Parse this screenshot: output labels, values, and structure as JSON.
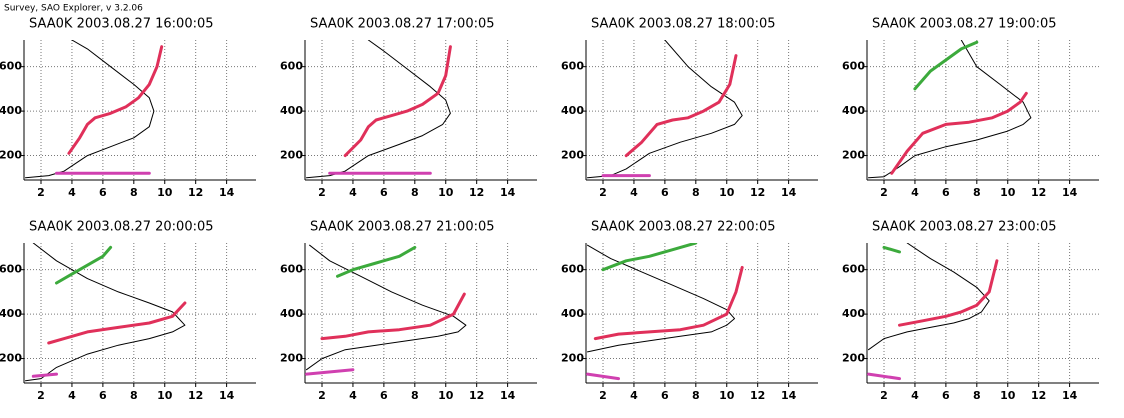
{
  "caption": "Survey, SAO Explorer, v 3.2.06",
  "chart_data": [
    {
      "type": "line",
      "title": "SAA0K 2003.08.27 16:00:05",
      "xlim": [
        0.9,
        15.9
      ],
      "ylim": [
        90,
        720
      ],
      "xticks": [
        2,
        4,
        6,
        8,
        10,
        12,
        14
      ],
      "yticks": [
        200,
        400,
        600
      ],
      "grid": true,
      "series": [
        {
          "color": "#000000",
          "x": [
            1,
            2.5,
            3.5,
            5,
            6.5,
            8,
            9,
            9.3,
            9,
            8,
            6.5,
            5,
            4
          ],
          "values": [
            100,
            110,
            130,
            200,
            240,
            280,
            330,
            400,
            460,
            520,
            600,
            680,
            720
          ]
        },
        {
          "color": "#e0305a",
          "x": [
            3.8,
            4.5,
            5,
            5.5,
            6.5,
            7.5,
            8.3,
            9,
            9.5,
            9.8
          ],
          "values": [
            210,
            280,
            340,
            370,
            390,
            420,
            460,
            520,
            600,
            690
          ]
        },
        {
          "color": "#d040b0",
          "x": [
            3,
            9
          ],
          "values": [
            120,
            120
          ]
        }
      ]
    },
    {
      "type": "line",
      "title": "SAA0K 2003.08.27 17:00:05",
      "xlim": [
        0.9,
        15.9
      ],
      "ylim": [
        90,
        720
      ],
      "xticks": [
        2,
        4,
        6,
        8,
        10,
        12,
        14
      ],
      "yticks": [
        200,
        400,
        600
      ],
      "grid": true,
      "series": [
        {
          "color": "#000000",
          "x": [
            1,
            2.5,
            3.5,
            5,
            7,
            8.5,
            9.8,
            10.3,
            10,
            9,
            7.5,
            6,
            5
          ],
          "values": [
            100,
            110,
            130,
            200,
            250,
            290,
            340,
            390,
            450,
            510,
            590,
            670,
            720
          ]
        },
        {
          "color": "#e0305a",
          "x": [
            3.5,
            4.5,
            5,
            5.5,
            6.5,
            7.5,
            8.5,
            9.5,
            10,
            10.3
          ],
          "values": [
            200,
            270,
            330,
            360,
            380,
            400,
            430,
            480,
            560,
            690
          ]
        },
        {
          "color": "#d040b0",
          "x": [
            2.5,
            9
          ],
          "values": [
            120,
            120
          ]
        }
      ]
    },
    {
      "type": "line",
      "title": "SAA0K 2003.08.27 18:00:05",
      "xlim": [
        0.9,
        15.9
      ],
      "ylim": [
        90,
        720
      ],
      "xticks": [
        2,
        4,
        6,
        8,
        10,
        12,
        14
      ],
      "yticks": [
        200,
        400,
        600
      ],
      "grid": true,
      "series": [
        {
          "color": "#000000",
          "x": [
            1,
            2.5,
            3.5,
            5,
            7,
            9,
            10.5,
            11,
            10.5,
            9,
            7.5,
            6
          ],
          "values": [
            100,
            110,
            140,
            210,
            260,
            300,
            340,
            380,
            440,
            510,
            600,
            720
          ]
        },
        {
          "color": "#e0305a",
          "x": [
            3.5,
            4.5,
            5.5,
            6.5,
            7.5,
            8.5,
            9.5,
            10.2,
            10.6
          ],
          "values": [
            200,
            260,
            340,
            360,
            370,
            400,
            440,
            520,
            650
          ]
        },
        {
          "color": "#d040b0",
          "x": [
            2,
            5
          ],
          "values": [
            110,
            110
          ]
        }
      ]
    },
    {
      "type": "line",
      "title": "SAA0K 2003.08.27 19:00:05",
      "xlim": [
        0.9,
        15.9
      ],
      "ylim": [
        90,
        720
      ],
      "xticks": [
        2,
        4,
        6,
        8,
        10,
        12,
        14
      ],
      "yticks": [
        200,
        400,
        600
      ],
      "grid": true,
      "series": [
        {
          "color": "#000000",
          "x": [
            1,
            2,
            3,
            4,
            6,
            8,
            10,
            11,
            11.5,
            11,
            9.5,
            8,
            7
          ],
          "values": [
            100,
            105,
            150,
            200,
            240,
            270,
            310,
            340,
            370,
            440,
            520,
            600,
            720
          ]
        },
        {
          "color": "#e0305a",
          "x": [
            2.5,
            3.5,
            4.5,
            6,
            7.5,
            9,
            10,
            10.8,
            11.2
          ],
          "values": [
            120,
            220,
            300,
            340,
            350,
            370,
            400,
            440,
            480
          ]
        },
        {
          "color": "#3caa3c",
          "x": [
            4,
            5,
            6,
            7,
            8
          ],
          "values": [
            500,
            580,
            630,
            680,
            710
          ]
        }
      ]
    },
    {
      "type": "line",
      "title": "SAA0K 2003.08.27 20:00:05",
      "xlim": [
        0.9,
        15.9
      ],
      "ylim": [
        90,
        720
      ],
      "xticks": [
        2,
        4,
        6,
        8,
        10,
        12,
        14
      ],
      "yticks": [
        200,
        400,
        600
      ],
      "grid": true,
      "series": [
        {
          "color": "#000000",
          "x": [
            1,
            2,
            3,
            5,
            7,
            9,
            10.5,
            11.3,
            10.5,
            9,
            7,
            5,
            3,
            1.5
          ],
          "values": [
            100,
            110,
            160,
            220,
            260,
            290,
            320,
            350,
            410,
            450,
            500,
            560,
            640,
            720
          ]
        },
        {
          "color": "#e0305a",
          "x": [
            2.5,
            3.5,
            5,
            7,
            9,
            10.5,
            11.3
          ],
          "values": [
            270,
            290,
            320,
            340,
            360,
            390,
            450
          ]
        },
        {
          "color": "#3caa3c",
          "x": [
            3,
            4,
            5,
            6,
            6.5
          ],
          "values": [
            540,
            580,
            620,
            660,
            700
          ]
        },
        {
          "color": "#d040b0",
          "x": [
            1.5,
            3
          ],
          "values": [
            120,
            130
          ]
        }
      ]
    },
    {
      "type": "line",
      "title": "SAA0K 2003.08.27 21:00:05",
      "xlim": [
        0.9,
        15.9
      ],
      "ylim": [
        90,
        720
      ],
      "xticks": [
        2,
        4,
        6,
        8,
        10,
        12,
        14
      ],
      "yticks": [
        200,
        400,
        600
      ],
      "grid": true,
      "series": [
        {
          "color": "#000000",
          "x": [
            1,
            2,
            3.5,
            5.5,
            7.5,
            9.5,
            10.8,
            11.3,
            10.5,
            8.5,
            6.5,
            4.5,
            2.5,
            1.2
          ],
          "values": [
            150,
            200,
            240,
            260,
            280,
            300,
            320,
            350,
            390,
            440,
            500,
            570,
            640,
            710
          ]
        },
        {
          "color": "#e0305a",
          "x": [
            2,
            3.5,
            5,
            7,
            9,
            10.5,
            11.2
          ],
          "values": [
            290,
            300,
            320,
            330,
            350,
            400,
            490
          ]
        },
        {
          "color": "#3caa3c",
          "x": [
            3,
            4,
            5.5,
            7,
            8
          ],
          "values": [
            570,
            600,
            630,
            660,
            700
          ]
        },
        {
          "color": "#d040b0",
          "x": [
            1,
            4
          ],
          "values": [
            130,
            150
          ]
        }
      ]
    },
    {
      "type": "line",
      "title": "SAA0K 2003.08.27 22:00:05",
      "xlim": [
        0.9,
        15.9
      ],
      "ylim": [
        90,
        720
      ],
      "xticks": [
        2,
        4,
        6,
        8,
        10,
        12,
        14
      ],
      "yticks": [
        200,
        400,
        600
      ],
      "grid": true,
      "series": [
        {
          "color": "#000000",
          "x": [
            1,
            3,
            5,
            7,
            9,
            10,
            10.5,
            10,
            8.5,
            6.5,
            4.5,
            2.5,
            1
          ],
          "values": [
            230,
            260,
            280,
            300,
            320,
            350,
            380,
            420,
            470,
            530,
            590,
            650,
            710
          ]
        },
        {
          "color": "#e0305a",
          "x": [
            1.5,
            3,
            5,
            7,
            8.5,
            10,
            10.6,
            11
          ],
          "values": [
            290,
            310,
            320,
            330,
            350,
            400,
            500,
            610
          ]
        },
        {
          "color": "#3caa3c",
          "x": [
            2,
            3.5,
            5,
            6.5,
            8
          ],
          "values": [
            600,
            640,
            660,
            690,
            720
          ]
        },
        {
          "color": "#d040b0",
          "x": [
            1,
            3
          ],
          "values": [
            130,
            110
          ]
        }
      ]
    },
    {
      "type": "line",
      "title": "SAA0K 2003.08.27 23:00:05",
      "xlim": [
        0.9,
        15.9
      ],
      "ylim": [
        90,
        720
      ],
      "xticks": [
        2,
        4,
        6,
        8,
        10,
        12,
        14
      ],
      "yticks": [
        200,
        400,
        600
      ],
      "grid": true,
      "series": [
        {
          "color": "#000000",
          "x": [
            1,
            2,
            3.5,
            5,
            6.5,
            7.5,
            8.3,
            8.8,
            8,
            6.5,
            5,
            3.5
          ],
          "values": [
            240,
            290,
            320,
            340,
            360,
            380,
            410,
            460,
            520,
            590,
            650,
            720
          ]
        },
        {
          "color": "#e0305a",
          "x": [
            3,
            4.5,
            6,
            7,
            8,
            8.8,
            9.3
          ],
          "values": [
            350,
            370,
            390,
            410,
            440,
            500,
            640
          ]
        },
        {
          "color": "#3caa3c",
          "x": [
            2,
            3
          ],
          "values": [
            700,
            680
          ]
        },
        {
          "color": "#d040b0",
          "x": [
            1,
            3
          ],
          "values": [
            130,
            110
          ]
        }
      ]
    }
  ]
}
